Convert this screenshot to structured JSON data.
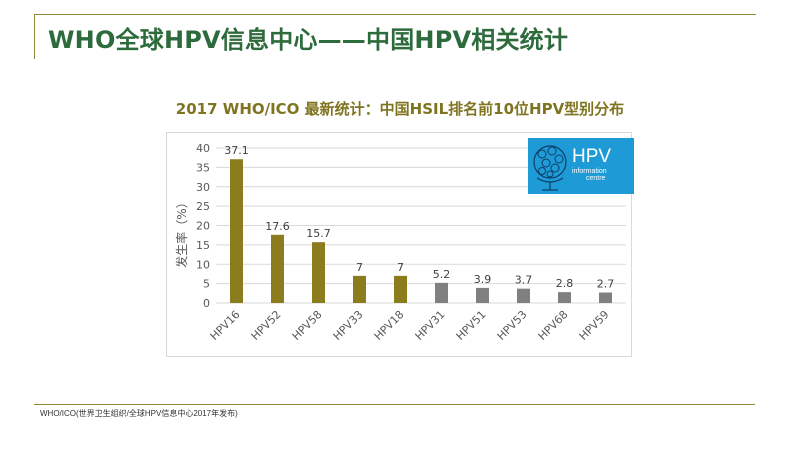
{
  "slide": {
    "title": "WHO全球HPV信息中心——中国HPV相关统计",
    "footnote": "WHO/ICO(世界卫生组织/全球HPV信息中心2017年发布)"
  },
  "logo": {
    "text": "HPV",
    "sub_line1": "information",
    "sub_line2": "centre"
  },
  "chart_data": {
    "type": "bar",
    "title": "2017 WHO/ICO 最新统计：中国HSIL排名前10位HPV型别分布",
    "ylabel": "发生率（%）",
    "xlabel": "",
    "ylim": [
      0,
      40
    ],
    "yticks": [
      0,
      5,
      10,
      15,
      20,
      25,
      30,
      35,
      40
    ],
    "grid": true,
    "categories": [
      "HPV16",
      "HPV52",
      "HPV58",
      "HPV33",
      "HPV18",
      "HPV31",
      "HPV51",
      "HPV53",
      "HPV68",
      "HPV59"
    ],
    "values": [
      37.1,
      17.6,
      15.7,
      7,
      7,
      5.2,
      3.9,
      3.7,
      2.8,
      2.7
    ],
    "value_labels": [
      "37.1",
      "17.6",
      "15.7",
      "7",
      "7",
      "5.2",
      "3.9",
      "3.7",
      "2.8",
      "2.7"
    ],
    "bar_colors": [
      "#8b7d1e",
      "#8b7d1e",
      "#8b7d1e",
      "#8b7d1e",
      "#8b7d1e",
      "#808080",
      "#808080",
      "#808080",
      "#808080",
      "#808080"
    ],
    "gridline_color": "#d9d9d9",
    "axis_text_color": "#595959"
  }
}
